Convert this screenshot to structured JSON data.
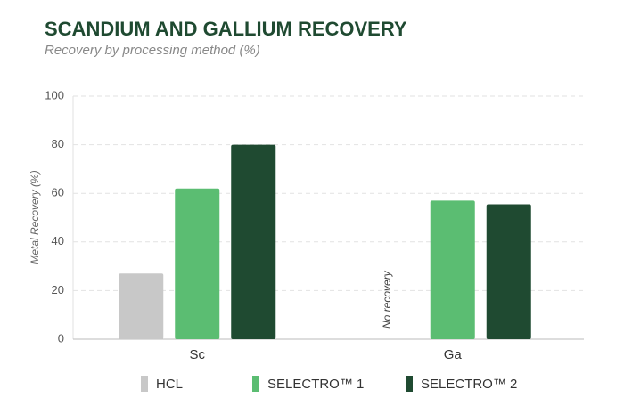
{
  "chart_data": {
    "type": "bar",
    "title": "SCANDIUM AND GALLIUM RECOVERY",
    "subtitle": "Recovery by processing method (%)",
    "y_label": "Metal Recovery (%)",
    "categories": [
      "Sc",
      "Ga"
    ],
    "series": [
      {
        "name": "HCL",
        "color": "#c8c8c8",
        "values": [
          27,
          null
        ]
      },
      {
        "name": "SELECTRO™ 1",
        "color": "#5bbd72",
        "values": [
          62,
          57
        ]
      },
      {
        "name": "SELECTRO™ 2",
        "color": "#1f4a31",
        "values": [
          80,
          55.5
        ]
      }
    ],
    "annotations": [
      "No recovery"
    ],
    "ylim": [
      0,
      100
    ],
    "yticks": [
      0,
      20,
      40,
      60,
      80,
      100
    ],
    "grid": true
  }
}
